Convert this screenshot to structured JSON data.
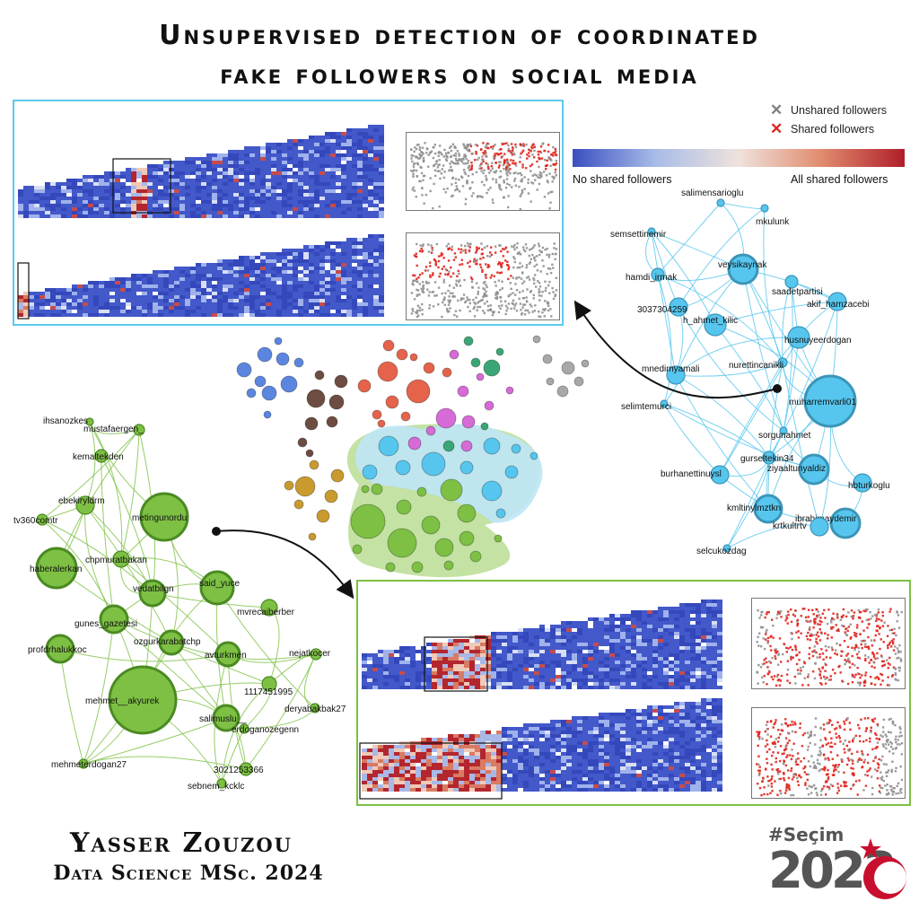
{
  "title_line1": "Unsupervised detection of coordinated",
  "title_line2": "fake followers on social media",
  "legend": {
    "unshared": "Unshared followers",
    "shared": "Shared followers"
  },
  "colorbar": {
    "left": "No shared followers",
    "right": "All shared followers",
    "colors": [
      "#3a4fc0",
      "#a8bce8",
      "#efe2dc",
      "#e08b6e",
      "#b01e2a"
    ]
  },
  "colors": {
    "blue_cluster": "#56c6ee",
    "green_cluster": "#7dc043",
    "shared": "#e0231d",
    "unshared": "#909090"
  },
  "blue_network": {
    "nodes": [
      "salimensarioglu",
      "mkulunk",
      "semsettinemir",
      "veysikaynak",
      "hamdi_irmak",
      "saadetpartisi",
      "akif_hamzacebi",
      "3037304259",
      "h_ahmet_kilic",
      "husnuyeerdogan",
      "mnedimyamali",
      "nurettincanikli",
      "muharremvarli01",
      "selimtemurci",
      "sorgunahmet",
      "gurseltekin34",
      "ziyaaltunyaldiz",
      "burhanettinuysl",
      "hbturkoglu",
      "kmltinylmztkn",
      "ibrahimaydemir",
      "krtkultrtv",
      "selcukozdag"
    ]
  },
  "green_network": {
    "nodes": [
      "ihsanozkes",
      "mustafaergen_",
      "kemaltekden",
      "ebekiryldrm",
      "metingunordu",
      "tv360comtr",
      "haberalerkan",
      "chpmuratbakan",
      "vedatbilgn",
      "said_yuce",
      "mvrecaiberber",
      "gunes_gazetesi",
      "profdrhalukkoc",
      "ozgurkarabatchp",
      "avturkmen",
      "nejatkocer",
      "1117451995",
      "mehmet__akyurek",
      "deryabakbak27",
      "salimuslu__",
      "erdoganozegenn",
      "mehmeterdogan27",
      "3021253366",
      "sebnem_kcklc"
    ]
  },
  "author": "Yasser Zouzou",
  "degree": "Data Science MSc. 2024",
  "logo": {
    "tag": "#Seçim",
    "year": "2023"
  }
}
